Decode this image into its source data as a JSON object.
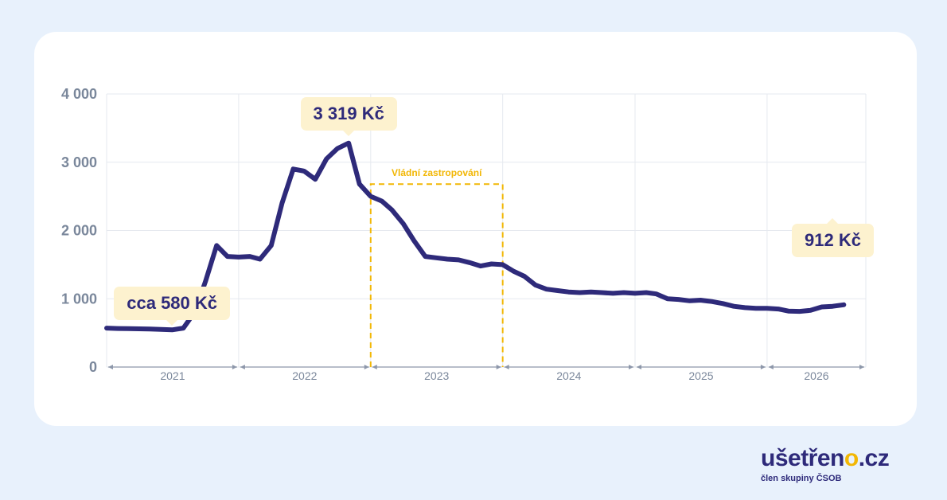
{
  "chart_data": {
    "type": "line",
    "title": "",
    "xlabel": "",
    "ylabel": "",
    "ylim": [
      0,
      4000
    ],
    "y_ticks": [
      "0",
      "1 000",
      "2 000",
      "3 000",
      "4 000"
    ],
    "x_ticks": [
      "2021",
      "2022",
      "2023",
      "2024",
      "2025",
      "2026"
    ],
    "x_range": [
      "2021-01-01",
      "2026-10-01"
    ],
    "grid": true,
    "series_color": "#2e2a7a",
    "accent_color": "#f2b705",
    "series": [
      {
        "points": [
          [
            "2021-01-01",
            570
          ],
          [
            "2021-02-01",
            565
          ],
          [
            "2021-03-01",
            562
          ],
          [
            "2021-04-01",
            560
          ],
          [
            "2021-05-01",
            558
          ],
          [
            "2021-06-01",
            552
          ],
          [
            "2021-07-01",
            545
          ],
          [
            "2021-08-01",
            570
          ],
          [
            "2021-09-01",
            800
          ],
          [
            "2021-10-01",
            1250
          ],
          [
            "2021-11-01",
            1780
          ],
          [
            "2021-12-01",
            1620
          ],
          [
            "2022-01-01",
            1610
          ],
          [
            "2022-02-01",
            1620
          ],
          [
            "2022-03-01",
            1580
          ],
          [
            "2022-04-01",
            1780
          ],
          [
            "2022-05-01",
            2400
          ],
          [
            "2022-06-01",
            2900
          ],
          [
            "2022-07-01",
            2870
          ],
          [
            "2022-08-01",
            2750
          ],
          [
            "2022-09-01",
            3050
          ],
          [
            "2022-10-01",
            3200
          ],
          [
            "2022-11-01",
            3280
          ],
          [
            "2022-12-01",
            2680
          ],
          [
            "2023-01-01",
            2500
          ],
          [
            "2023-02-01",
            2430
          ],
          [
            "2023-03-01",
            2300
          ],
          [
            "2023-04-01",
            2100
          ],
          [
            "2023-05-01",
            1850
          ],
          [
            "2023-06-01",
            1620
          ],
          [
            "2023-07-01",
            1600
          ],
          [
            "2023-08-01",
            1580
          ],
          [
            "2023-09-01",
            1570
          ],
          [
            "2023-10-01",
            1530
          ],
          [
            "2023-11-01",
            1480
          ],
          [
            "2023-12-01",
            1510
          ],
          [
            "2024-01-01",
            1500
          ],
          [
            "2024-02-01",
            1400
          ],
          [
            "2024-03-01",
            1330
          ],
          [
            "2024-04-01",
            1200
          ],
          [
            "2024-05-01",
            1140
          ],
          [
            "2024-06-01",
            1120
          ],
          [
            "2024-07-01",
            1100
          ],
          [
            "2024-08-01",
            1090
          ],
          [
            "2024-09-01",
            1100
          ],
          [
            "2024-10-01",
            1090
          ],
          [
            "2024-11-01",
            1080
          ],
          [
            "2024-12-01",
            1090
          ],
          [
            "2025-01-01",
            1080
          ],
          [
            "2025-02-01",
            1090
          ],
          [
            "2025-03-01",
            1070
          ],
          [
            "2025-04-01",
            1000
          ],
          [
            "2025-05-01",
            990
          ],
          [
            "2025-06-01",
            970
          ],
          [
            "2025-07-01",
            980
          ],
          [
            "2025-08-01",
            960
          ],
          [
            "2025-09-01",
            930
          ],
          [
            "2025-10-01",
            890
          ],
          [
            "2025-11-01",
            870
          ],
          [
            "2025-12-01",
            860
          ],
          [
            "2026-01-01",
            860
          ],
          [
            "2026-02-01",
            850
          ],
          [
            "2026-03-01",
            820
          ],
          [
            "2026-04-01",
            815
          ],
          [
            "2026-05-01",
            830
          ],
          [
            "2026-06-01",
            880
          ],
          [
            "2026-07-01",
            890
          ],
          [
            "2026-08-01",
            912
          ]
        ]
      }
    ],
    "annotations": [
      {
        "label": "cca 580 Kč",
        "x": "2021-07-01",
        "y": 545
      },
      {
        "label": "3 319 Kč",
        "x": "2022-11-01",
        "y": 3319
      },
      {
        "label": "912 Kč",
        "x": "2026-08-01",
        "y": 912
      }
    ],
    "regions": [
      {
        "label": "Vládní zastropování",
        "x_start": "2023-01-01",
        "x_end": "2024-01-01",
        "y": 2680
      }
    ]
  },
  "logo": {
    "name": "ušetřeno",
    "accent": "o",
    "suffix": ".cz",
    "tagline": "člen skupiny ČSOB"
  }
}
